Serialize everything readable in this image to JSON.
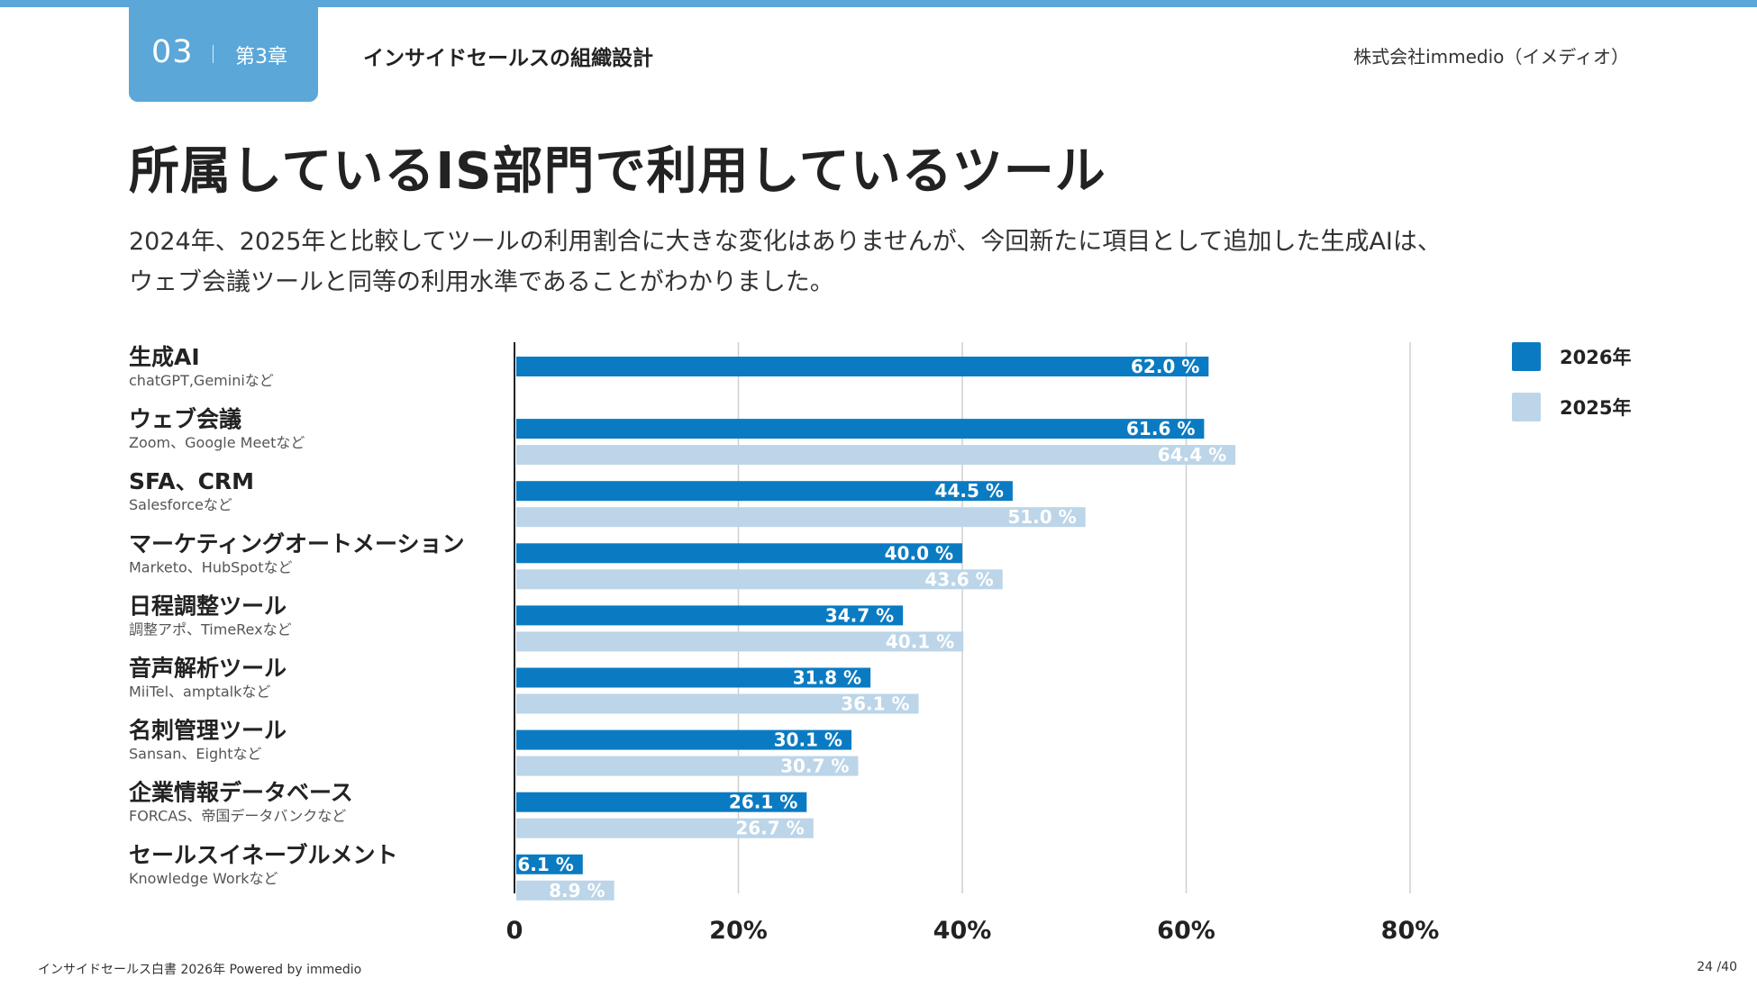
{
  "header": {
    "chapter_number": "03",
    "chapter_label": "第3章",
    "section_title": "インサイドセールスの組織設計",
    "company": "株式会社immedio（イメディオ）"
  },
  "page_title": "所属しているIS部門で利用しているツール",
  "description": {
    "line1": "2024年、2025年と比較してツールの利用割合に大きな変化はありませんが、今回新たに項目として追加した生成AIは、",
    "line2": "ウェブ会議ツールと同等の利用水準であることがわかりました。"
  },
  "footer": {
    "left": "インサイドセールス白書 2026年 Powered by immedio",
    "right": "24 /40"
  },
  "chart_data": {
    "type": "bar",
    "orientation": "horizontal",
    "categories": [
      "生成AI",
      "ウェブ会議",
      "SFA、CRM",
      "マーケティングオートメーション",
      "日程調整ツール",
      "音声解析ツール",
      "名刺管理ツール",
      "企業情報データベース",
      "セールスイネーブルメント"
    ],
    "subtitles": [
      "chatGPT,Geminiなど",
      "Zoom、Google Meetなど",
      "Salesforceなど",
      "Marketo、HubSpotなど",
      "調整アポ、TimeRexなど",
      "MiiTel、amptalkなど",
      "Sansan、Eightなど",
      "FORCAS、帝国データバンクなど",
      "Knowledge Workなど"
    ],
    "series": [
      {
        "name": "2026年",
        "color": "#0a7bc2",
        "values": [
          62.0,
          61.6,
          44.5,
          40.0,
          34.7,
          31.8,
          30.1,
          26.1,
          6.1
        ]
      },
      {
        "name": "2025年",
        "color": "#bcd5e8",
        "values": [
          null,
          64.4,
          51.0,
          43.6,
          40.1,
          36.1,
          30.7,
          26.7,
          8.9
        ]
      }
    ],
    "value_suffix": " %",
    "x_ticks": [
      "0",
      "20%",
      "40%",
      "60%",
      "80%"
    ],
    "x_tick_values": [
      0,
      20,
      40,
      60,
      80
    ],
    "xlim": [
      0,
      80
    ],
    "grid": true,
    "legend_position": "top-right"
  }
}
